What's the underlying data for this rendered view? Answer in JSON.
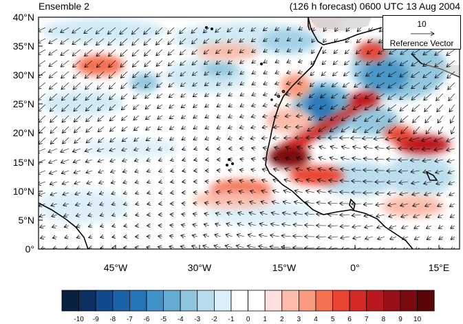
{
  "header": {
    "left_title": "Ensemble 2",
    "right_title": "(126 h forecast) 0600 UTC 13 Aug 2004"
  },
  "reference_vector": {
    "value": "10",
    "label": "Reference Vector"
  },
  "axes": {
    "lat_labels": [
      "40°N",
      "35°N",
      "30°N",
      "25°N",
      "20°N",
      "15°N",
      "10°N",
      "5°N",
      "0°"
    ],
    "lon_labels": [
      "45°W",
      "30°W",
      "15°W",
      "0°",
      "15°E"
    ],
    "lat_range": [
      0,
      40
    ],
    "lon_range": [
      -55,
      20
    ]
  },
  "colorbar": {
    "labels": [
      "-10",
      "-9",
      "-8",
      "-7",
      "-6",
      "-5",
      "-4",
      "-3",
      "-2",
      "-1",
      "0",
      "1",
      "2",
      "3",
      "4",
      "5",
      "6",
      "7",
      "8",
      "9",
      "10"
    ],
    "colors": [
      "#08203f",
      "#0b2f60",
      "#134a8c",
      "#1b63a8",
      "#2375b8",
      "#3f93c6",
      "#64acd2",
      "#8dc5de",
      "#b8dcec",
      "#dcf0fa",
      "#ffffff",
      "#ffffff",
      "#fde0dd",
      "#fbbcaa",
      "#f89a7d",
      "#f4704f",
      "#ea4432",
      "#d42a26",
      "#bb171f",
      "#981017",
      "#7a0a10",
      "#5a0508"
    ]
  }
}
